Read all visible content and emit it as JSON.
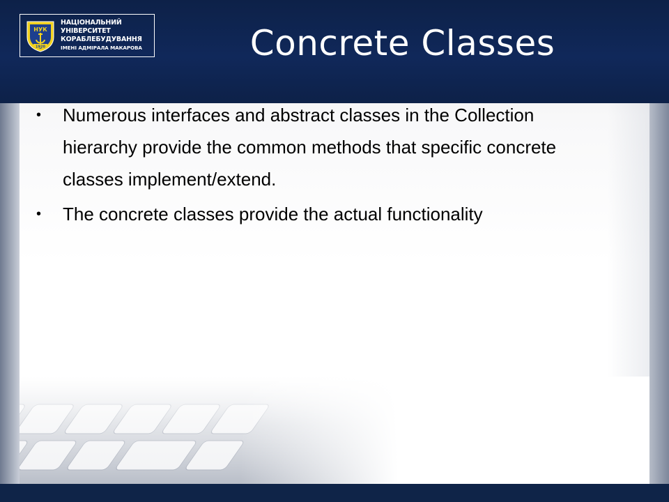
{
  "logo": {
    "line1": "НАЦІОНАЛЬНИЙ",
    "line2": "УНІВЕРСИТЕТ",
    "line3": "КОРАБЛЕБУДУВАННЯ",
    "line4": "ІМЕНІ АДМІРАЛА МАКАРОВА",
    "emblem_text_top": "НУК",
    "emblem_year": "1920"
  },
  "slide": {
    "title": "Concrete Classes",
    "bullets": [
      {
        "lines": [
          "Numerous interfaces and abstract classes in the Collection",
          "hierarchy provide the common methods that specific concrete",
          "classes implement/extend."
        ]
      },
      {
        "lines": [
          "The concrete classes provide the actual functionality"
        ]
      }
    ],
    "bullet_glyph": "•"
  },
  "colors": {
    "header_navy": "#10285a",
    "emblem_blue": "#1d3f8f",
    "emblem_yellow": "#f2d21e"
  }
}
